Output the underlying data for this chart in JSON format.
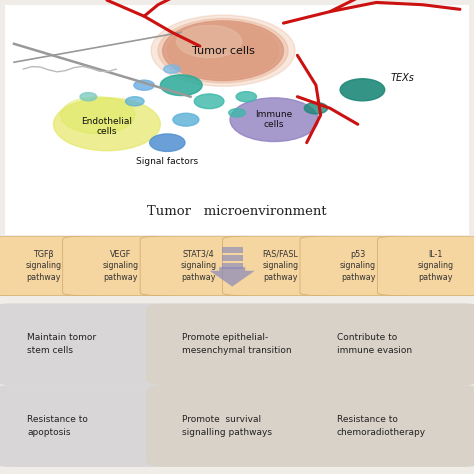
{
  "pathway_boxes": [
    {
      "label": "TGFβ\nsignaling\npathway",
      "color": "#f5d5a0"
    },
    {
      "label": "VEGF\nsignaling\npathway",
      "color": "#f5d5a0"
    },
    {
      "label": "STAT3/4\nsignaling\npathway",
      "color": "#f5d5a0"
    },
    {
      "label": "FAS/FASL\nsignaling\npathway",
      "color": "#f5d5a0"
    },
    {
      "label": "p53\nsignaling\npathway",
      "color": "#f5d5a0"
    },
    {
      "label": "IL-1\nsignaling\npathway",
      "color": "#f5d5a0"
    }
  ],
  "effect_boxes": [
    {
      "label": "Maintain tomor\nstem cells",
      "row": 0,
      "col": 0,
      "color": "#dcdada"
    },
    {
      "label": "Promote epithelial-\nmesenchymal transition",
      "row": 0,
      "col": 1,
      "color": "#ddd8d0"
    },
    {
      "label": "Contribute to\nimmune evasion",
      "row": 0,
      "col": 2,
      "color": "#ddd8d0"
    },
    {
      "label": "Resistance to\napoptosis",
      "row": 1,
      "col": 0,
      "color": "#dcdada"
    },
    {
      "label": "Promote  survival\nsignalling pathways",
      "row": 1,
      "col": 1,
      "color": "#ddd8d0"
    },
    {
      "label": "Resistance to\nchemoradiotherapy",
      "row": 1,
      "col": 2,
      "color": "#ddd8d0"
    }
  ],
  "tumor_label": "Tumor   microenvironment",
  "arrow_color": "#8888bb",
  "top_bg": "#ffffff",
  "bottom_bg": "#f0ece8",
  "mid_bg": "#f0ece8"
}
